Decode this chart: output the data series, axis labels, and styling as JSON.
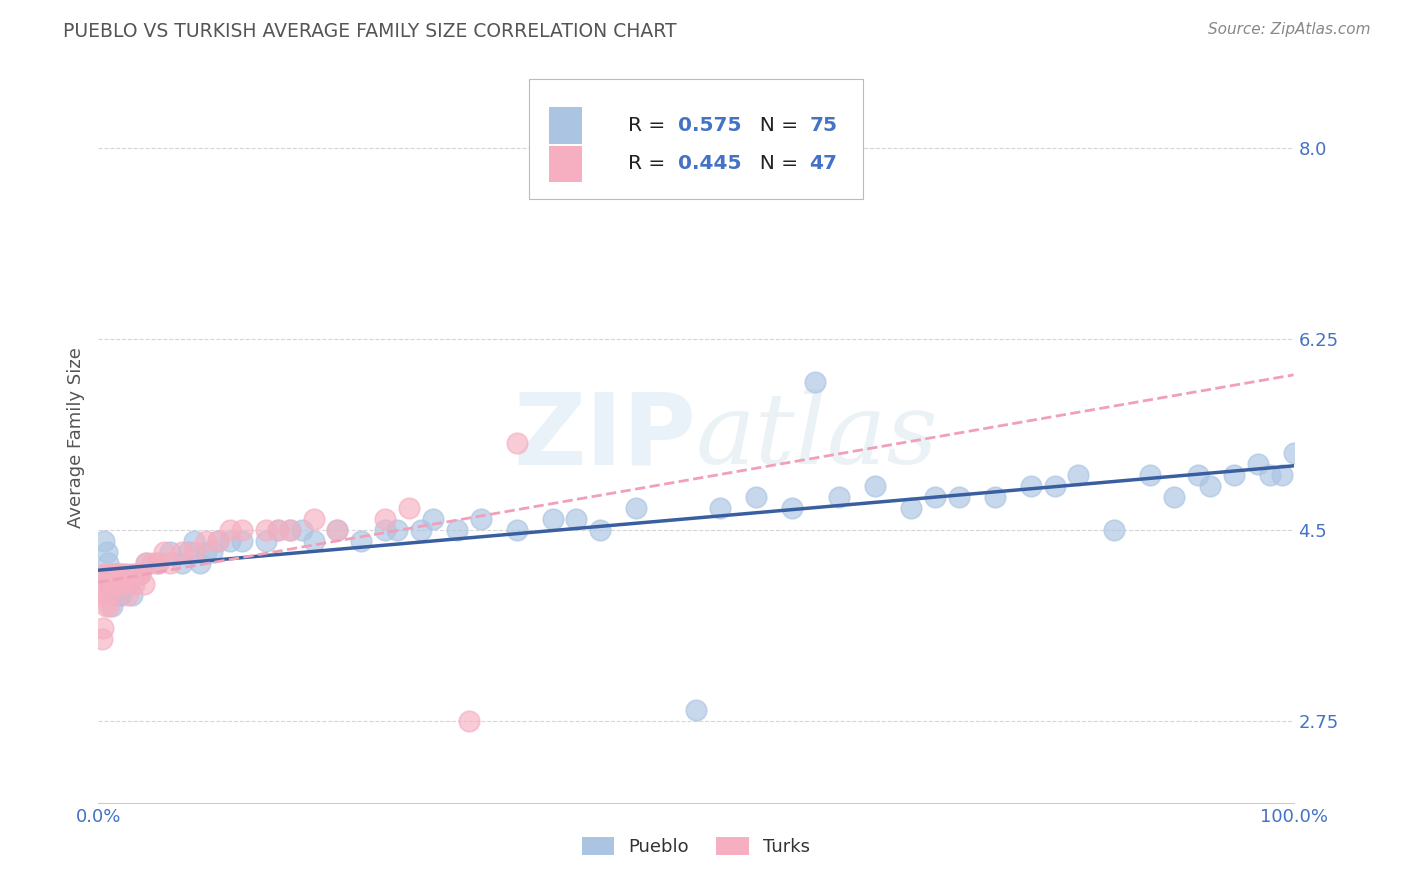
{
  "title": "PUEBLO VS TURKISH AVERAGE FAMILY SIZE CORRELATION CHART",
  "source_text": "Source: ZipAtlas.com",
  "ylabel": "Average Family Size",
  "xlim": [
    0,
    1
  ],
  "ylim": [
    2.0,
    8.7
  ],
  "yticks": [
    2.75,
    4.5,
    6.25,
    8.0
  ],
  "xtick_positions": [
    0.0,
    1.0
  ],
  "xticklabels": [
    "0.0%",
    "100.0%"
  ],
  "background_color": "#ffffff",
  "grid_color": "#cccccc",
  "title_color": "#555555",
  "axis_color": "#4472c4",
  "watermark_text": "ZIPatlas",
  "pueblo_color": "#aac4e2",
  "turks_color": "#f5afc0",
  "pueblo_line_color": "#3a5fa0",
  "turks_line_color": "#f0a0b8",
  "pueblo_scatter_x": [
    0.005,
    0.007,
    0.008,
    0.009,
    0.01,
    0.01,
    0.011,
    0.012,
    0.013,
    0.014,
    0.015,
    0.016,
    0.017,
    0.018,
    0.019,
    0.02,
    0.022,
    0.024,
    0.026,
    0.028,
    0.03,
    0.035,
    0.04,
    0.05,
    0.06,
    0.07,
    0.075,
    0.08,
    0.085,
    0.09,
    0.095,
    0.1,
    0.11,
    0.12,
    0.14,
    0.15,
    0.16,
    0.17,
    0.18,
    0.2,
    0.22,
    0.24,
    0.25,
    0.27,
    0.28,
    0.3,
    0.32,
    0.35,
    0.38,
    0.4,
    0.42,
    0.45,
    0.5,
    0.52,
    0.55,
    0.58,
    0.6,
    0.62,
    0.65,
    0.68,
    0.7,
    0.72,
    0.75,
    0.78,
    0.8,
    0.82,
    0.85,
    0.88,
    0.9,
    0.92,
    0.93,
    0.95,
    0.97,
    0.98,
    0.99,
    1.0
  ],
  "pueblo_scatter_y": [
    4.4,
    4.3,
    4.2,
    4.0,
    3.9,
    4.1,
    3.8,
    4.0,
    4.1,
    3.9,
    4.0,
    4.0,
    3.9,
    4.1,
    3.9,
    4.0,
    4.1,
    4.0,
    4.0,
    3.9,
    4.1,
    4.1,
    4.2,
    4.2,
    4.3,
    4.2,
    4.3,
    4.4,
    4.2,
    4.3,
    4.3,
    4.4,
    4.4,
    4.4,
    4.4,
    4.5,
    4.5,
    4.5,
    4.4,
    4.5,
    4.4,
    4.5,
    4.5,
    4.5,
    4.6,
    4.5,
    4.6,
    4.5,
    4.6,
    4.6,
    4.5,
    4.7,
    2.85,
    4.7,
    4.8,
    4.7,
    5.85,
    4.8,
    4.9,
    4.7,
    4.8,
    4.8,
    4.8,
    4.9,
    4.9,
    5.0,
    4.5,
    5.0,
    4.8,
    5.0,
    4.9,
    5.0,
    5.1,
    5.0,
    5.0,
    5.2
  ],
  "turks_scatter_x": [
    0.003,
    0.004,
    0.005,
    0.005,
    0.006,
    0.007,
    0.007,
    0.008,
    0.009,
    0.01,
    0.011,
    0.012,
    0.013,
    0.014,
    0.015,
    0.016,
    0.017,
    0.018,
    0.019,
    0.02,
    0.022,
    0.025,
    0.027,
    0.03,
    0.032,
    0.035,
    0.038,
    0.04,
    0.045,
    0.05,
    0.055,
    0.06,
    0.07,
    0.08,
    0.09,
    0.1,
    0.11,
    0.12,
    0.14,
    0.15,
    0.16,
    0.18,
    0.2,
    0.24,
    0.26,
    0.31,
    0.35
  ],
  "turks_scatter_y": [
    3.5,
    3.6,
    3.9,
    4.1,
    3.8,
    4.0,
    4.1,
    3.9,
    3.8,
    4.0,
    4.1,
    4.1,
    4.0,
    4.1,
    4.0,
    4.1,
    4.1,
    4.1,
    4.0,
    4.0,
    4.1,
    3.9,
    4.1,
    4.0,
    4.1,
    4.1,
    4.0,
    4.2,
    4.2,
    4.2,
    4.3,
    4.2,
    4.3,
    4.3,
    4.4,
    4.4,
    4.5,
    4.5,
    4.5,
    4.5,
    4.5,
    4.6,
    4.5,
    4.6,
    4.7,
    2.75,
    5.3
  ]
}
